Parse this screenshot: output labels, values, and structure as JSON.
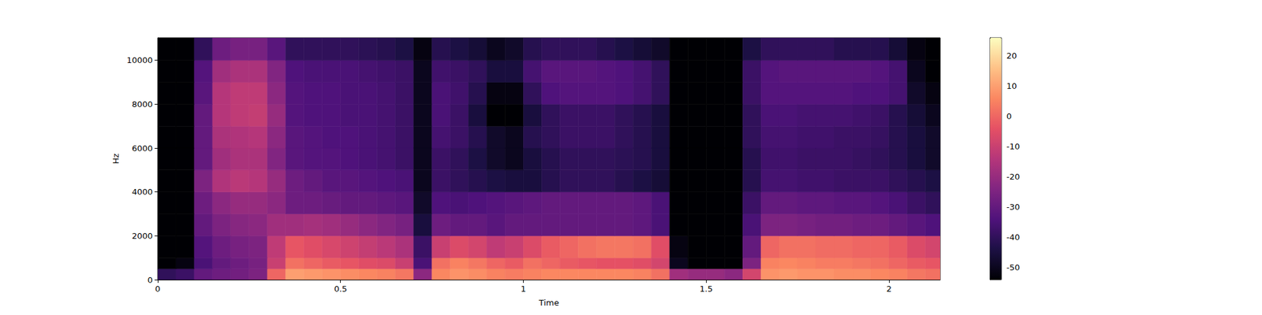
{
  "chart_data": {
    "type": "heatmap",
    "x_label": "Time",
    "y_label": "Hz",
    "xlim": [
      0,
      2.14
    ],
    "ylim": [
      0,
      11025
    ],
    "xticks": [
      0,
      0.5,
      1,
      1.5,
      2
    ],
    "yticks": [
      0,
      2000,
      4000,
      6000,
      8000,
      10000
    ],
    "x": [
      0,
      0.05,
      0.1,
      0.15,
      0.2,
      0.25,
      0.3,
      0.35,
      0.4,
      0.45,
      0.5,
      0.55,
      0.6,
      0.65,
      0.7,
      0.75,
      0.8,
      0.85,
      0.9,
      0.95,
      1,
      1.05,
      1.1,
      1.15,
      1.2,
      1.25,
      1.3,
      1.35,
      1.4,
      1.45,
      1.5,
      1.55,
      1.6,
      1.65,
      1.7,
      1.75,
      1.8,
      1.85,
      1.9,
      1.95,
      2,
      2.05,
      2.1
    ],
    "y": [
      0,
      500,
      1000,
      2000,
      3000,
      4000,
      5000,
      6000,
      7000,
      8000,
      9000,
      10000
    ],
    "cells": [
      [
        -40,
        -38,
        -30,
        -28,
        -27,
        -25,
        0,
        10,
        9,
        8,
        7,
        6,
        5,
        3,
        -22,
        6,
        8,
        7,
        5,
        4,
        5,
        6,
        6,
        6,
        6,
        6,
        5,
        2,
        -18,
        -20,
        -20,
        -22,
        -8,
        8,
        9,
        8,
        8,
        7,
        7,
        6,
        5,
        3,
        2
      ],
      [
        -55,
        -52,
        -35,
        -30,
        -28,
        -26,
        -10,
        2,
        0,
        -2,
        -3,
        -5,
        -6,
        -10,
        -35,
        2,
        5,
        3,
        0,
        -2,
        2,
        0,
        -2,
        -3,
        -4,
        -4,
        -5,
        -8,
        -50,
        -55,
        -55,
        -55,
        -25,
        5,
        6,
        5,
        4,
        4,
        3,
        2,
        0,
        -2,
        -3
      ],
      [
        -55,
        -55,
        -33,
        -28,
        -26,
        -25,
        -12,
        -3,
        -5,
        -7,
        -9,
        -11,
        -13,
        -16,
        -38,
        -10,
        -6,
        -8,
        -12,
        -10,
        -6,
        -2,
        0,
        2,
        3,
        3,
        2,
        -5,
        -52,
        -55,
        -55,
        -55,
        -30,
        0,
        2,
        2,
        1,
        1,
        0,
        0,
        -2,
        -6,
        -8
      ],
      [
        -55,
        -55,
        -30,
        -25,
        -23,
        -22,
        -18,
        -18,
        -17,
        -18,
        -20,
        -22,
        -24,
        -26,
        -45,
        -28,
        -30,
        -30,
        -32,
        -30,
        -30,
        -30,
        -30,
        -30,
        -30,
        -30,
        -31,
        -35,
        -55,
        -55,
        -55,
        -55,
        -35,
        -25,
        -25,
        -26,
        -27,
        -27,
        -28,
        -28,
        -30,
        -32,
        -34
      ],
      [
        -55,
        -55,
        -28,
        -22,
        -20,
        -20,
        -22,
        -28,
        -28,
        -29,
        -30,
        -30,
        -31,
        -32,
        -48,
        -34,
        -35,
        -34,
        -33,
        -32,
        -31,
        -30,
        -30,
        -30,
        -30,
        -30,
        -31,
        -35,
        -55,
        -55,
        -55,
        -55,
        -38,
        -30,
        -30,
        -31,
        -31,
        -32,
        -32,
        -33,
        -35,
        -38,
        -40
      ],
      [
        -55,
        -55,
        -25,
        -15,
        -13,
        -14,
        -20,
        -28,
        -30,
        -32,
        -32,
        -33,
        -34,
        -35,
        -50,
        -38,
        -40,
        -42,
        -44,
        -45,
        -45,
        -42,
        -40,
        -40,
        -40,
        -42,
        -44,
        -46,
        -55,
        -55,
        -55,
        -55,
        -42,
        -36,
        -36,
        -37,
        -37,
        -38,
        -38,
        -38,
        -40,
        -42,
        -44
      ],
      [
        -55,
        -55,
        -30,
        -18,
        -16,
        -16,
        -24,
        -32,
        -33,
        -33,
        -34,
        -35,
        -36,
        -38,
        -50,
        -38,
        -40,
        -44,
        -48,
        -50,
        -45,
        -42,
        -40,
        -40,
        -40,
        -41,
        -42,
        -45,
        -55,
        -55,
        -55,
        -55,
        -42,
        -37,
        -37,
        -38,
        -38,
        -38,
        -39,
        -40,
        -42,
        -45,
        -48
      ],
      [
        -55,
        -55,
        -30,
        -16,
        -15,
        -14,
        -22,
        -32,
        -33,
        -34,
        -34,
        -35,
        -36,
        -38,
        -50,
        -36,
        -38,
        -42,
        -48,
        -50,
        -42,
        -40,
        -38,
        -38,
        -38,
        -40,
        -42,
        -45,
        -55,
        -55,
        -55,
        -55,
        -40,
        -36,
        -36,
        -37,
        -37,
        -38,
        -38,
        -39,
        -42,
        -45,
        -48
      ],
      [
        -55,
        -55,
        -30,
        -14,
        -12,
        -11,
        -20,
        -33,
        -34,
        -34,
        -35,
        -35,
        -36,
        -38,
        -50,
        -35,
        -38,
        -45,
        -55,
        -55,
        -45,
        -40,
        -38,
        -38,
        -38,
        -40,
        -42,
        -45,
        -55,
        -55,
        -55,
        -55,
        -40,
        -35,
        -35,
        -36,
        -36,
        -36,
        -37,
        -38,
        -42,
        -46,
        -50
      ],
      [
        -55,
        -55,
        -32,
        -14,
        -12,
        -12,
        -22,
        -33,
        -34,
        -34,
        -35,
        -35,
        -36,
        -38,
        -50,
        -35,
        -37,
        -42,
        -52,
        -52,
        -40,
        -34,
        -33,
        -33,
        -33,
        -34,
        -36,
        -40,
        -55,
        -55,
        -55,
        -55,
        -38,
        -33,
        -33,
        -33,
        -33,
        -33,
        -34,
        -34,
        -36,
        -48,
        -52
      ],
      [
        -55,
        -55,
        -33,
        -18,
        -16,
        -16,
        -24,
        -34,
        -35,
        -35,
        -35,
        -36,
        -37,
        -38,
        -50,
        -37,
        -38,
        -40,
        -45,
        -45,
        -36,
        -32,
        -32,
        -32,
        -33,
        -34,
        -36,
        -40,
        -55,
        -55,
        -55,
        -55,
        -38,
        -33,
        -32,
        -32,
        -32,
        -32,
        -32,
        -33,
        -36,
        -50,
        -54
      ],
      [
        -55,
        -55,
        -40,
        -28,
        -26,
        -26,
        -32,
        -40,
        -40,
        -40,
        -40,
        -41,
        -42,
        -44,
        -52,
        -42,
        -44,
        -46,
        -50,
        -48,
        -42,
        -40,
        -40,
        -40,
        -42,
        -44,
        -46,
        -48,
        -55,
        -55,
        -55,
        -55,
        -44,
        -40,
        -40,
        -40,
        -40,
        -42,
        -42,
        -42,
        -46,
        -52,
        -54
      ]
    ],
    "colorbar": {
      "range": [
        -54,
        26
      ],
      "ticks": [
        -50,
        -40,
        -30,
        -20,
        -10,
        0,
        10,
        20
      ]
    }
  }
}
